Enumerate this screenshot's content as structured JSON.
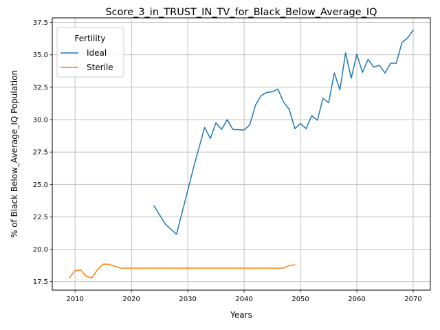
{
  "chart_data": {
    "type": "line",
    "title": "Score_3_in_TRUST_IN_TV_for_Black_Below_Average_IQ",
    "xlabel": "Years",
    "ylabel": "% of Black Below_Average_IQ Population",
    "xlim": [
      2005.95,
      2073.05
    ],
    "ylim": [
      16.85,
      37.85
    ],
    "xticks": [
      2010,
      2020,
      2030,
      2040,
      2050,
      2060,
      2070
    ],
    "xtick_labels": [
      "2010",
      "2020",
      "2030",
      "2040",
      "2050",
      "2060",
      "2070"
    ],
    "yticks": [
      17.5,
      20.0,
      22.5,
      25.0,
      27.5,
      30.0,
      32.5,
      35.0,
      37.5
    ],
    "ytick_labels": [
      "17.5",
      "20.0",
      "22.5",
      "25.0",
      "27.5",
      "30.0",
      "32.5",
      "35.0",
      "37.5"
    ],
    "grid": true,
    "legend": {
      "title": "Fertility",
      "placement": "top-left"
    },
    "series": [
      {
        "name": "Ideal",
        "color": "#1f77b4",
        "x": [
          2024,
          2025,
          2026,
          2027,
          2028,
          2029,
          2030,
          2031,
          2032,
          2033,
          2034,
          2035,
          2036,
          2037,
          2038,
          2039,
          2040,
          2041,
          2042,
          2043,
          2044,
          2045,
          2046,
          2047,
          2048,
          2049,
          2050,
          2051,
          2052,
          2053,
          2054,
          2055,
          2056,
          2057,
          2058,
          2059,
          2060,
          2061,
          2062,
          2063,
          2064,
          2065,
          2066,
          2067,
          2068,
          2069,
          2070
        ],
        "y": [
          23.35,
          22.65,
          21.95,
          21.55,
          21.15,
          22.85,
          24.55,
          26.25,
          27.85,
          29.4,
          28.55,
          29.75,
          29.25,
          30.0,
          29.25,
          29.22,
          29.2,
          29.6,
          31.1,
          31.85,
          32.1,
          32.15,
          32.35,
          31.35,
          30.8,
          29.3,
          29.7,
          29.3,
          30.3,
          29.95,
          31.65,
          31.3,
          33.6,
          32.3,
          35.15,
          33.2,
          35.05,
          33.65,
          34.65,
          34.05,
          34.2,
          33.6,
          34.35,
          34.35,
          35.95,
          36.3,
          36.9
        ]
      },
      {
        "name": "Sterile",
        "color": "#ff7f0e",
        "x": [
          2009,
          2010,
          2011,
          2012,
          2013,
          2014,
          2015,
          2016,
          2017,
          2018,
          2019,
          2020,
          2021,
          2022,
          2023,
          2024,
          2025,
          2026,
          2027,
          2028,
          2029,
          2030,
          2031,
          2032,
          2033,
          2034,
          2035,
          2036,
          2037,
          2038,
          2039,
          2040,
          2041,
          2042,
          2043,
          2044,
          2045,
          2046,
          2047,
          2048,
          2049
        ],
        "y": [
          17.8,
          18.35,
          18.4,
          17.9,
          17.8,
          18.45,
          18.85,
          18.85,
          18.7,
          18.55,
          18.55,
          18.55,
          18.55,
          18.55,
          18.55,
          18.55,
          18.55,
          18.55,
          18.55,
          18.55,
          18.55,
          18.55,
          18.55,
          18.55,
          18.55,
          18.55,
          18.55,
          18.55,
          18.55,
          18.55,
          18.55,
          18.55,
          18.55,
          18.55,
          18.55,
          18.55,
          18.55,
          18.55,
          18.55,
          18.75,
          18.8
        ]
      }
    ]
  }
}
